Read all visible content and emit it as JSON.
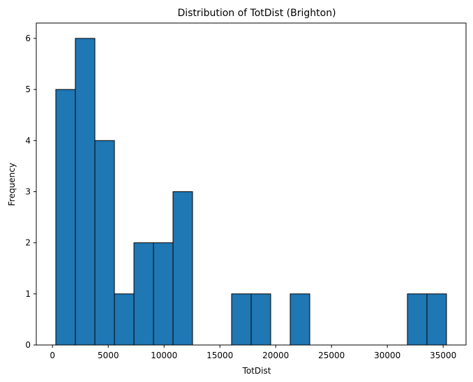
{
  "chart_data": {
    "type": "bar",
    "title": "Distribution of TotDist (Brighton)",
    "xlabel": "TotDist",
    "ylabel": "Frequency",
    "bin_edges": [
      300,
      2050,
      3800,
      5550,
      7300,
      9050,
      10800,
      12550,
      14300,
      16050,
      17800,
      19550,
      21300,
      23050,
      24800,
      26550,
      28300,
      30050,
      31800,
      33550,
      35300
    ],
    "values": [
      5,
      6,
      4,
      1,
      2,
      2,
      3,
      0,
      0,
      1,
      1,
      0,
      1,
      0,
      0,
      0,
      0,
      0,
      1,
      1
    ],
    "xlim": [
      -1450,
      37050
    ],
    "ylim": [
      0,
      6.3
    ],
    "x_ticks": [
      0,
      5000,
      10000,
      15000,
      20000,
      25000,
      30000,
      35000
    ],
    "y_ticks": [
      0,
      1,
      2,
      3,
      4,
      5,
      6
    ],
    "bar_color": "#1f77b4",
    "edge_color": "#000000",
    "grid": false,
    "legend": false
  }
}
